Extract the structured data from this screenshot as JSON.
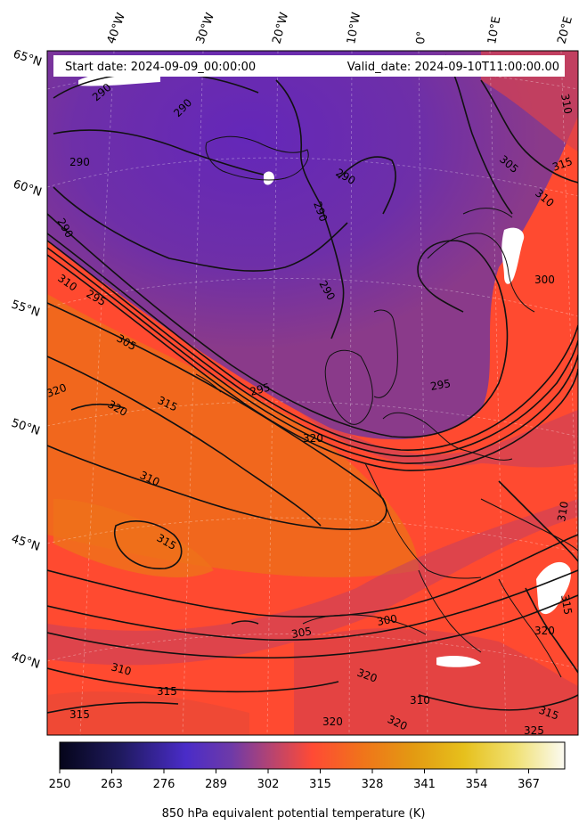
{
  "header": {
    "start_date": "Start date: 2024-09-09_00:00:00",
    "valid_date": "Valid_date: 2024-09-10T11:00:00.00"
  },
  "longitude_labels": [
    "40°W",
    "30°W",
    "20°W",
    "10°W",
    "0°",
    "10°E",
    "20°E"
  ],
  "latitude_labels": [
    "65°N",
    "60°N",
    "55°N",
    "50°N",
    "45°N",
    "40°N"
  ],
  "contour_labels": [
    "290",
    "290",
    "290",
    "290",
    "290",
    "290",
    "295",
    "290",
    "310",
    "295",
    "305",
    "320",
    "320",
    "315",
    "320",
    "295",
    "310",
    "315",
    "305",
    "300",
    "310",
    "315",
    "320",
    "310",
    "320",
    "320",
    "315",
    "305",
    "310",
    "300",
    "310",
    "315",
    "310",
    "315",
    "320",
    "325",
    "315"
  ],
  "colorbar": {
    "tick_labels": [
      "250",
      "263",
      "276",
      "289",
      "302",
      "315",
      "328",
      "341",
      "354",
      "367"
    ],
    "range": [
      250,
      376
    ],
    "label": "850 hPa equivalent potential temperature (K)",
    "colormap": "CMRmap"
  }
}
